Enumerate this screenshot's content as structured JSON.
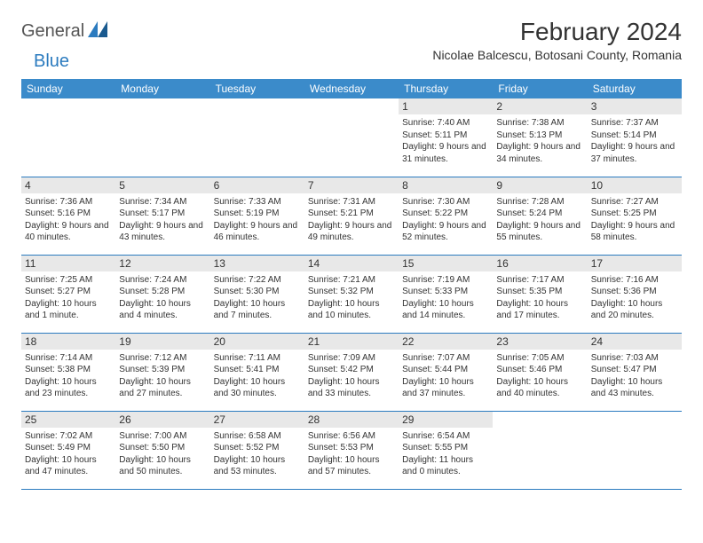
{
  "logo": {
    "general": "General",
    "blue": "Blue"
  },
  "title": "February 2024",
  "location": "Nicolae Balcescu, Botosani County, Romania",
  "colors": {
    "header_bg": "#3b8bca",
    "header_text": "#ffffff",
    "border": "#2b7bbf",
    "daynum_bg": "#e8e8e8",
    "text": "#333333",
    "logo_blue": "#2b7bbf",
    "logo_gray": "#555555"
  },
  "columns": [
    "Sunday",
    "Monday",
    "Tuesday",
    "Wednesday",
    "Thursday",
    "Friday",
    "Saturday"
  ],
  "weeks": [
    [
      null,
      null,
      null,
      null,
      {
        "n": "1",
        "sr": "7:40 AM",
        "ss": "5:11 PM",
        "dl": "9 hours and 31 minutes."
      },
      {
        "n": "2",
        "sr": "7:38 AM",
        "ss": "5:13 PM",
        "dl": "9 hours and 34 minutes."
      },
      {
        "n": "3",
        "sr": "7:37 AM",
        "ss": "5:14 PM",
        "dl": "9 hours and 37 minutes."
      }
    ],
    [
      {
        "n": "4",
        "sr": "7:36 AM",
        "ss": "5:16 PM",
        "dl": "9 hours and 40 minutes."
      },
      {
        "n": "5",
        "sr": "7:34 AM",
        "ss": "5:17 PM",
        "dl": "9 hours and 43 minutes."
      },
      {
        "n": "6",
        "sr": "7:33 AM",
        "ss": "5:19 PM",
        "dl": "9 hours and 46 minutes."
      },
      {
        "n": "7",
        "sr": "7:31 AM",
        "ss": "5:21 PM",
        "dl": "9 hours and 49 minutes."
      },
      {
        "n": "8",
        "sr": "7:30 AM",
        "ss": "5:22 PM",
        "dl": "9 hours and 52 minutes."
      },
      {
        "n": "9",
        "sr": "7:28 AM",
        "ss": "5:24 PM",
        "dl": "9 hours and 55 minutes."
      },
      {
        "n": "10",
        "sr": "7:27 AM",
        "ss": "5:25 PM",
        "dl": "9 hours and 58 minutes."
      }
    ],
    [
      {
        "n": "11",
        "sr": "7:25 AM",
        "ss": "5:27 PM",
        "dl": "10 hours and 1 minute."
      },
      {
        "n": "12",
        "sr": "7:24 AM",
        "ss": "5:28 PM",
        "dl": "10 hours and 4 minutes."
      },
      {
        "n": "13",
        "sr": "7:22 AM",
        "ss": "5:30 PM",
        "dl": "10 hours and 7 minutes."
      },
      {
        "n": "14",
        "sr": "7:21 AM",
        "ss": "5:32 PM",
        "dl": "10 hours and 10 minutes."
      },
      {
        "n": "15",
        "sr": "7:19 AM",
        "ss": "5:33 PM",
        "dl": "10 hours and 14 minutes."
      },
      {
        "n": "16",
        "sr": "7:17 AM",
        "ss": "5:35 PM",
        "dl": "10 hours and 17 minutes."
      },
      {
        "n": "17",
        "sr": "7:16 AM",
        "ss": "5:36 PM",
        "dl": "10 hours and 20 minutes."
      }
    ],
    [
      {
        "n": "18",
        "sr": "7:14 AM",
        "ss": "5:38 PM",
        "dl": "10 hours and 23 minutes."
      },
      {
        "n": "19",
        "sr": "7:12 AM",
        "ss": "5:39 PM",
        "dl": "10 hours and 27 minutes."
      },
      {
        "n": "20",
        "sr": "7:11 AM",
        "ss": "5:41 PM",
        "dl": "10 hours and 30 minutes."
      },
      {
        "n": "21",
        "sr": "7:09 AM",
        "ss": "5:42 PM",
        "dl": "10 hours and 33 minutes."
      },
      {
        "n": "22",
        "sr": "7:07 AM",
        "ss": "5:44 PM",
        "dl": "10 hours and 37 minutes."
      },
      {
        "n": "23",
        "sr": "7:05 AM",
        "ss": "5:46 PM",
        "dl": "10 hours and 40 minutes."
      },
      {
        "n": "24",
        "sr": "7:03 AM",
        "ss": "5:47 PM",
        "dl": "10 hours and 43 minutes."
      }
    ],
    [
      {
        "n": "25",
        "sr": "7:02 AM",
        "ss": "5:49 PM",
        "dl": "10 hours and 47 minutes."
      },
      {
        "n": "26",
        "sr": "7:00 AM",
        "ss": "5:50 PM",
        "dl": "10 hours and 50 minutes."
      },
      {
        "n": "27",
        "sr": "6:58 AM",
        "ss": "5:52 PM",
        "dl": "10 hours and 53 minutes."
      },
      {
        "n": "28",
        "sr": "6:56 AM",
        "ss": "5:53 PM",
        "dl": "10 hours and 57 minutes."
      },
      {
        "n": "29",
        "sr": "6:54 AM",
        "ss": "5:55 PM",
        "dl": "11 hours and 0 minutes."
      },
      null,
      null
    ]
  ],
  "labels": {
    "sunrise": "Sunrise:",
    "sunset": "Sunset:",
    "daylight": "Daylight:"
  }
}
